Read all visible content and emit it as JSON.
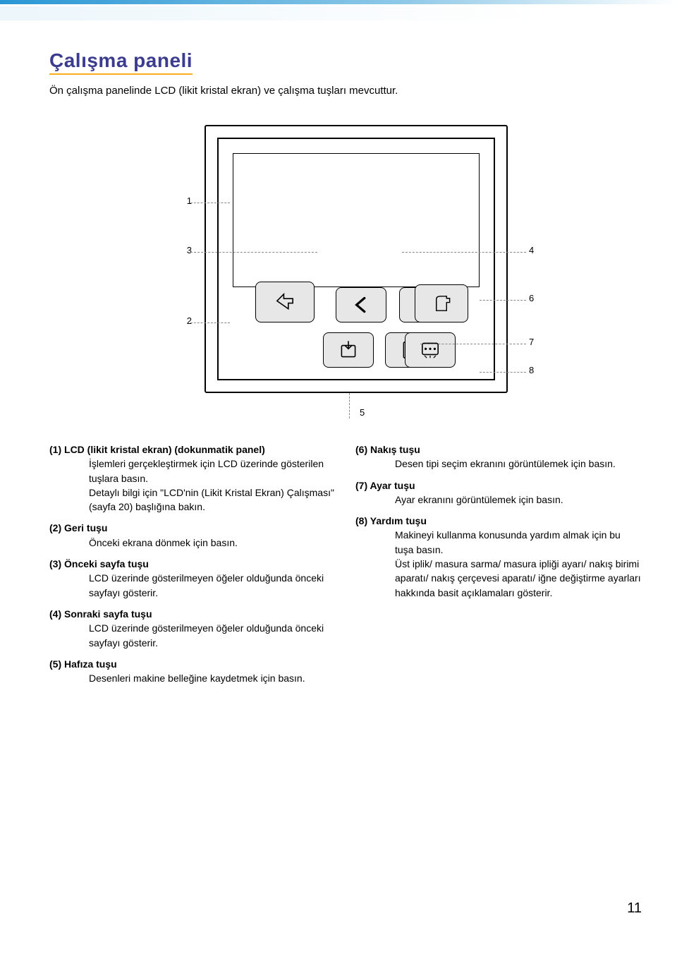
{
  "accent_color": "#2a97d4",
  "underline_color": "#fbae17",
  "title_color": "#3b3b8f",
  "page_number": "11",
  "title": "Çalışma paneli",
  "subtitle": "Ön çalışma panelinde LCD (likit kristal ekran) ve çalışma tuşları mevcuttur.",
  "callouts": {
    "c1": "1",
    "c2": "2",
    "c3": "3",
    "c4": "4",
    "c5": "5",
    "c6": "6",
    "c7": "7",
    "c8": "8"
  },
  "left_items": [
    {
      "num": "(1)",
      "title": "LCD (likit kristal ekran) (dokunmatik panel)",
      "body": "İşlemleri gerçekleştirmek için LCD üzerinde gösterilen tuşlara basın.\nDetaylı bilgi için \"LCD'nin (Likit Kristal Ekran) Çalışması\" (sayfa 20) başlığına bakın."
    },
    {
      "num": "(2)",
      "title": "Geri tuşu",
      "body": "Önceki ekrana dönmek için basın."
    },
    {
      "num": "(3)",
      "title": "Önceki sayfa tuşu",
      "body": "LCD üzerinde gösterilmeyen öğeler olduğunda önceki sayfayı gösterir."
    },
    {
      "num": "(4)",
      "title": "Sonraki sayfa tuşu",
      "body": "LCD üzerinde gösterilmeyen öğeler olduğunda önceki sayfayı gösterir."
    },
    {
      "num": "(5)",
      "title": "Hafıza tuşu",
      "body": "Desenleri makine belleğine kaydetmek için basın."
    }
  ],
  "right_items": [
    {
      "num": "(6)",
      "title": "Nakış tuşu",
      "body": "Desen tipi seçim ekranını görüntülemek için basın."
    },
    {
      "num": "(7)",
      "title": "Ayar tuşu",
      "body": "Ayar ekranını görüntülemek için basın."
    },
    {
      "num": "(8)",
      "title": "Yardım tuşu",
      "body": "Makineyi kullanma konusunda yardım almak için bu tuşa basın.\nÜst iplik/ masura sarma/ masura ipliği ayarı/ nakış birimi aparatı/ nakış çerçevesi aparatı/ iğne değiştirme ayarları hakkında basit açıklamaları gösterir."
    }
  ]
}
